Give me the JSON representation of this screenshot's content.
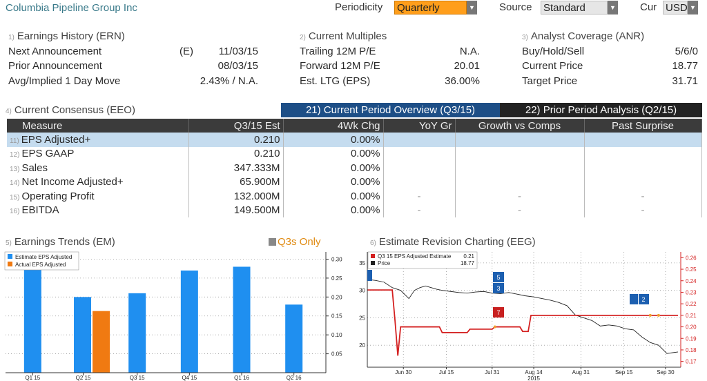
{
  "header": {
    "company": "Columbia Pipeline Group Inc",
    "periodicity_label": "Periodicity",
    "periodicity_value": "Quarterly",
    "source_label": "Source",
    "source_value": "Standard",
    "cur_label": "Cur",
    "cur_value": "USD"
  },
  "earnings_history": {
    "num": "1)",
    "title": "Earnings History (ERN)",
    "rows": [
      {
        "label": "Next Announcement",
        "prefix": "(E)",
        "value": "11/03/15"
      },
      {
        "label": "Prior Announcement",
        "prefix": "",
        "value": "08/03/15"
      },
      {
        "label": "Avg/Implied 1 Day Move",
        "prefix": "",
        "value": "2.43% / N.A."
      }
    ]
  },
  "current_multiples": {
    "num": "2)",
    "title": "Current Multiples",
    "rows": [
      {
        "label": "Trailing 12M P/E",
        "value": "N.A."
      },
      {
        "label": "Forward 12M P/E",
        "value": "20.01"
      },
      {
        "label": "Est. LTG (EPS)",
        "value": "36.00%"
      }
    ]
  },
  "analyst_coverage": {
    "num": "3)",
    "title": "Analyst Coverage (ANR)",
    "rows": [
      {
        "label": "Buy/Hold/Sell",
        "value": "5/6/0"
      },
      {
        "label": "Current Price",
        "value": "18.77"
      },
      {
        "label": "Target Price",
        "value": "31.71"
      }
    ]
  },
  "consensus": {
    "num": "4)",
    "title": "Current Consensus (EEO)",
    "tab_current": "21) Current Period Overview (Q3/15)",
    "tab_prior": "22) Prior Period Analysis (Q2/15)",
    "columns": [
      "Measure",
      "Q3/15 Est",
      "4Wk Chg",
      "YoY Gr",
      "Growth vs Comps",
      "Past Surprise"
    ],
    "rows": [
      {
        "n": "11)",
        "measure": "EPS Adjusted+",
        "est": "0.210",
        "chg": "0.00%",
        "yoy": "",
        "comps": "",
        "surprise": ""
      },
      {
        "n": "12)",
        "measure": "EPS GAAP",
        "est": "0.210",
        "chg": "0.00%",
        "yoy": "",
        "comps": "",
        "surprise": ""
      },
      {
        "n": "13)",
        "measure": "Sales",
        "est": "347.333M",
        "chg": "0.00%",
        "yoy": "",
        "comps": "",
        "surprise": ""
      },
      {
        "n": "14)",
        "measure": "Net Income Adjusted+",
        "est": "65.900M",
        "chg": "0.00%",
        "yoy": "",
        "comps": "",
        "surprise": ""
      },
      {
        "n": "15)",
        "measure": "Operating Profit",
        "est": "132.000M",
        "chg": "0.00%",
        "yoy": "-",
        "comps": "-",
        "surprise": "-"
      },
      {
        "n": "16)",
        "measure": "EBITDA",
        "est": "149.500M",
        "chg": "0.00%",
        "yoy": "-",
        "comps": "-",
        "surprise": "-"
      }
    ]
  },
  "earnings_trends": {
    "num": "5)",
    "title": "Earnings Trends (EM)",
    "toggle": "Q3s Only",
    "colors": {
      "estimate": "#1f8ff0",
      "actual": "#f07a12"
    }
  },
  "estimate_revision": {
    "num": "6)",
    "title": "Estimate Revision Charting (EEG)",
    "legend": [
      {
        "label": "Q3 15 EPS Adjusted Estimate",
        "value": "0.21",
        "color": "#d42020"
      },
      {
        "label": "Price",
        "value": "18.77",
        "color": "#222222"
      }
    ],
    "markers": [
      {
        "text": "5",
        "color": "#1c5fb0"
      },
      {
        "text": "3",
        "color": "#1c5fb0"
      },
      {
        "text": "7",
        "color": "#c82020"
      },
      {
        "text": "2",
        "color": "#1c5fb0"
      }
    ],
    "colors": {
      "estimate": "#d42020",
      "price": "#222222"
    }
  },
  "chart_data": [
    {
      "type": "bar",
      "categories": [
        "Q1 15",
        "Q2 15",
        "Q3 15",
        "Q4 15",
        "Q1 16",
        "Q2 16"
      ],
      "series": [
        {
          "name": "Estimate EPS Adjusted",
          "values": [
            0.3,
            0.2,
            0.21,
            0.27,
            0.28,
            0.18
          ]
        },
        {
          "name": "Actual EPS Adjusted",
          "values": [
            null,
            0.163,
            null,
            null,
            null,
            null
          ]
        }
      ],
      "yticks": [
        "0.30",
        "0.25",
        "0.20",
        "0.15",
        "0.10",
        "0.05"
      ],
      "ylim": [
        0,
        0.31
      ],
      "legend": "top-left",
      "grid": true
    },
    {
      "type": "line",
      "x_ticks": [
        "Jun 30",
        "Jul 15",
        "Jul 31",
        "Aug 14",
        "Aug 31",
        "Sep 15",
        "Sep 30"
      ],
      "x_year": "2015",
      "left_axis": {
        "ticks": [
          "35",
          "30",
          "25",
          "20"
        ],
        "range": [
          16,
          37
        ]
      },
      "right_axis": {
        "ticks": [
          "0.26",
          "0.25",
          "0.24",
          "0.23",
          "0.22",
          "0.21",
          "0.20",
          "0.19",
          "0.18",
          "0.17"
        ],
        "range": [
          0.165,
          0.265
        ]
      },
      "series": [
        {
          "name": "Price",
          "axis": "left",
          "x": [
            0,
            3,
            6,
            9,
            12,
            15,
            17,
            19,
            21,
            23,
            25,
            27,
            30,
            33,
            36,
            39,
            42,
            45,
            48,
            51,
            54,
            57,
            60,
            63,
            66,
            69,
            72,
            75,
            78,
            81,
            84,
            87,
            90,
            93,
            96,
            99,
            102,
            105,
            108,
            112
          ],
          "y": [
            32,
            31.8,
            31.5,
            30.5,
            30,
            28.5,
            30,
            30.5,
            30.8,
            30.5,
            30.2,
            30,
            29.8,
            29.6,
            29.5,
            29.7,
            29.8,
            29.5,
            29.4,
            29.6,
            29.3,
            29,
            28.8,
            28.5,
            28.2,
            27.8,
            27.2,
            25.5,
            25,
            24.5,
            23.5,
            23.7,
            23.5,
            23,
            22.8,
            21.5,
            20.5,
            20,
            18.5,
            18.77
          ]
        },
        {
          "name": "Q3 15 EPS Adjusted Estimate",
          "axis": "right",
          "x": [
            0,
            9,
            10,
            11,
            12,
            13,
            26,
            27,
            28,
            36,
            37,
            45,
            46,
            47,
            55,
            56,
            58,
            59,
            60,
            112
          ],
          "y": [
            0.232,
            0.232,
            0.205,
            0.175,
            0.2,
            0.2,
            0.2,
            0.195,
            0.195,
            0.195,
            0.198,
            0.198,
            0.2,
            0.2,
            0.2,
            0.196,
            0.196,
            0.21,
            0.21,
            0.21
          ]
        }
      ],
      "legend": "top-left",
      "grid": true
    }
  ]
}
